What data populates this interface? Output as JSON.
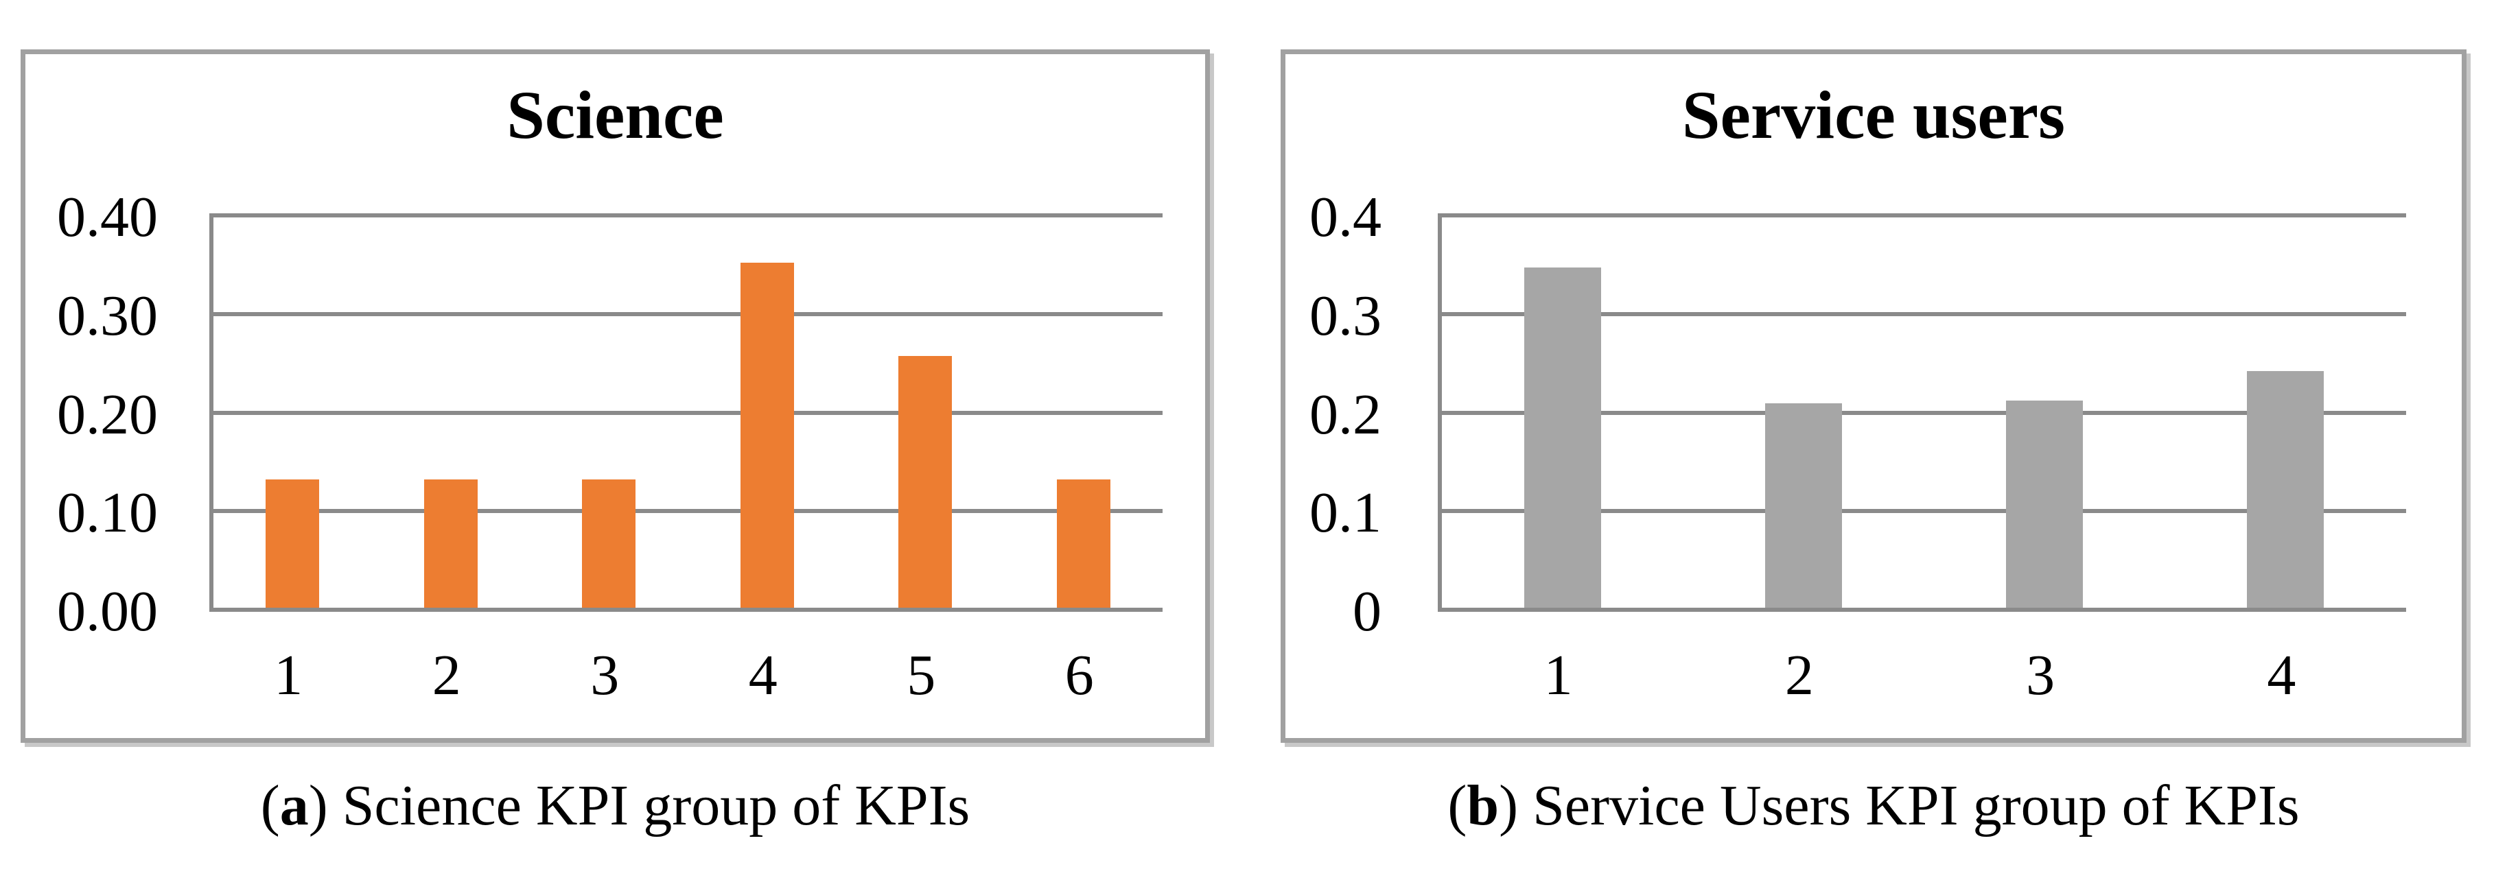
{
  "figure": {
    "type": "two-panel-bar-figure",
    "background": "#FFFFFF"
  },
  "palette": {
    "science_bar": "#ED7D31",
    "service_users_bar": "#A6A6A6",
    "gridline": "#8A8A8A",
    "panel_border": "#A1A1A1",
    "text": "#000000"
  },
  "chart_data": [
    {
      "type": "bar",
      "title": "Science",
      "categories": [
        "1",
        "2",
        "3",
        "4",
        "5",
        "6"
      ],
      "values": [
        0.13,
        0.13,
        0.13,
        0.35,
        0.255,
        0.13
      ],
      "xlabel": "",
      "ylabel": "",
      "ylim": [
        0,
        0.4
      ],
      "yticks": [
        0,
        0.1,
        0.2,
        0.3,
        0.4
      ],
      "ytick_labels": [
        "0.00",
        "0.10",
        "0.20",
        "0.30",
        "0.40"
      ],
      "grid": true,
      "legend": false,
      "bar_color": "#ED7D31",
      "caption": {
        "open": "(",
        "label": "a",
        "close": ")",
        "text": " Science KPI group of KPIs"
      }
    },
    {
      "type": "bar",
      "title": "Service users",
      "categories": [
        "1",
        "2",
        "3",
        "4"
      ],
      "values": [
        0.345,
        0.207,
        0.21,
        0.24
      ],
      "xlabel": "",
      "ylabel": "",
      "ylim": [
        0,
        0.4
      ],
      "yticks": [
        0,
        0.1,
        0.2,
        0.3,
        0.4
      ],
      "ytick_labels": [
        "0",
        "0.1",
        "0.2",
        "0.3",
        "0.4"
      ],
      "grid": true,
      "legend": false,
      "bar_color": "#A6A6A6",
      "caption": {
        "open": "(",
        "label": "b",
        "close": ")",
        "text": " Service Users KPI group of KPIs"
      }
    }
  ]
}
